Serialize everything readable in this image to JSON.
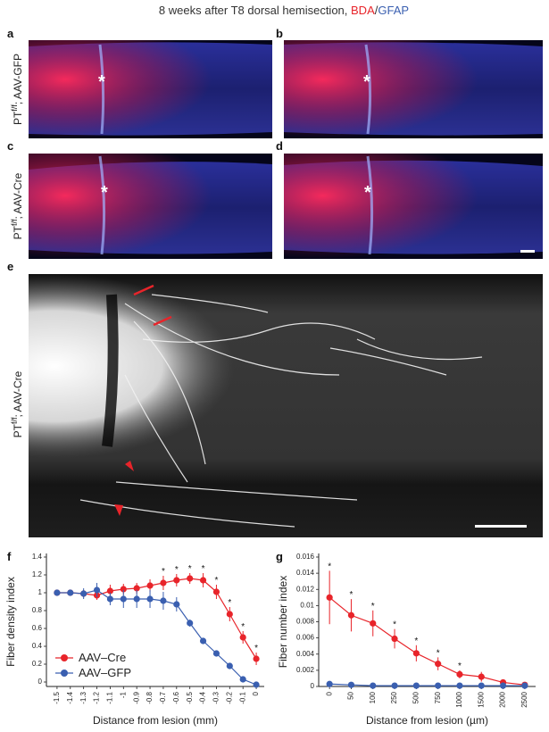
{
  "figure": {
    "title": {
      "prefix": "8 weeks after T8 dorsal hemisection, ",
      "stain1": "BDA",
      "separator": "/",
      "stain2": "GFAP"
    },
    "panel_letters": [
      "a",
      "b",
      "c",
      "d",
      "e",
      "f",
      "g"
    ],
    "row_labels": [
      {
        "base": "PT",
        "superscript": "f/f",
        "rest": "; AAV-GFP"
      },
      {
        "base": "PT",
        "superscript": "f/f",
        "rest": "; AAV-Cre"
      },
      {
        "base": "PT",
        "superscript": "f/f",
        "rest": "; AAV-Cre"
      }
    ],
    "lesion_marker": "*"
  },
  "chart_data": [
    {
      "type": "line",
      "x_label": "Distance from lesion (mm)",
      "y_label": "Fiber density index",
      "x": [
        -1.5,
        -1.4,
        -1.3,
        -1.2,
        -1.1,
        -1,
        -0.9,
        -0.8,
        -0.7,
        -0.6,
        -0.5,
        -0.4,
        -0.3,
        -0.2,
        -0.1,
        0
      ],
      "xlim": [
        -1.58,
        0.06
      ],
      "xticks": [
        -1.5,
        -1.4,
        -1.3,
        -1.2,
        -1.1,
        -1,
        -0.9,
        -0.8,
        -0.7,
        -0.6,
        -0.5,
        -0.4,
        -0.3,
        -0.2,
        -0.1,
        0
      ],
      "ylim": [
        -0.05,
        1.4
      ],
      "yticks": [
        0,
        0.2,
        0.4,
        0.6,
        0.8,
        1,
        1.2,
        1.4
      ],
      "legend": "lower-left",
      "series": [
        {
          "name": "AAV–Cre",
          "color": "#e8242a",
          "values": [
            1.0,
            1.0,
            0.99,
            0.97,
            1.02,
            1.04,
            1.05,
            1.08,
            1.11,
            1.14,
            1.16,
            1.14,
            1.01,
            0.76,
            0.5,
            0.26
          ],
          "errors": [
            0.02,
            0.03,
            0.04,
            0.05,
            0.07,
            0.06,
            0.06,
            0.07,
            0.08,
            0.07,
            0.06,
            0.08,
            0.08,
            0.08,
            0.07,
            0.07
          ]
        },
        {
          "name": "AAV–GFP",
          "color": "#3a5fb0",
          "values": [
            1.0,
            1.0,
            0.99,
            1.03,
            0.93,
            0.93,
            0.93,
            0.93,
            0.91,
            0.87,
            0.66,
            0.46,
            0.32,
            0.18,
            0.03,
            -0.03
          ],
          "errors": [
            0.02,
            0.03,
            0.06,
            0.08,
            0.07,
            0.1,
            0.1,
            0.1,
            0.1,
            0.08,
            0.04,
            0.03,
            0.03,
            0.03,
            0.02,
            0.02
          ]
        }
      ],
      "significance": {
        "label": "*",
        "indices": [
          8,
          9,
          10,
          11,
          12,
          13,
          14,
          15
        ]
      }
    },
    {
      "type": "line",
      "x_label": "Distance from lesion (µm)",
      "y_label": "Fiber number index",
      "categories": [
        "0",
        "50",
        "100",
        "250",
        "500",
        "750",
        "1000",
        "1500",
        "2000",
        "2500"
      ],
      "ylim": [
        0,
        0.016
      ],
      "yticks": [
        0,
        0.002,
        0.004,
        0.006,
        0.008,
        0.01,
        0.012,
        0.014,
        0.016
      ],
      "series": [
        {
          "name": "AAV–Cre",
          "color": "#e8242a",
          "values": [
            0.011,
            0.0088,
            0.0078,
            0.0059,
            0.0041,
            0.0028,
            0.0015,
            0.0012,
            0.0005,
            0.0002
          ],
          "errors": [
            0.0033,
            0.002,
            0.0016,
            0.0012,
            0.001,
            0.0008,
            0.0005,
            0.0006,
            0.0003,
            0.0001
          ]
        },
        {
          "name": "AAV–GFP",
          "color": "#3a5fb0",
          "values": [
            0.0003,
            0.0002,
            0.0001,
            0.0001,
            0.0001,
            0.0001,
            0.0001,
            0.0001,
            0.0001,
            0.0001
          ],
          "errors": [
            0.0001,
            0.0001,
            0.0001,
            0.0001,
            0.0001,
            0.0001,
            0.0001,
            0.0001,
            0.0001,
            0.0001
          ]
        }
      ],
      "significance": {
        "label": "*",
        "indices": [
          0,
          1,
          2,
          3,
          4,
          5,
          6
        ]
      }
    }
  ]
}
